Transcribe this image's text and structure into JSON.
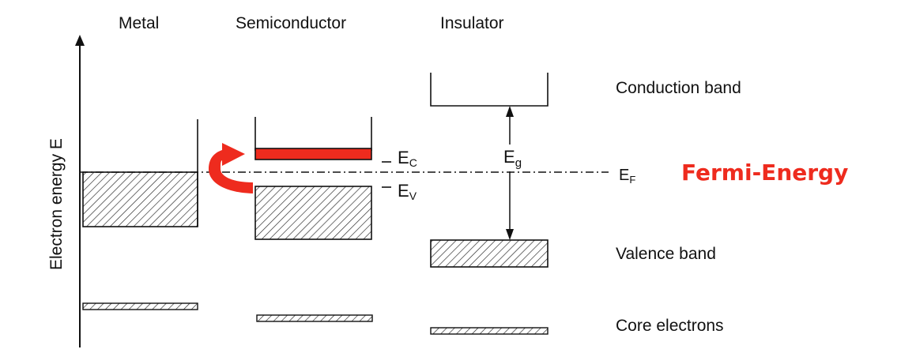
{
  "headers": {
    "metal": "Metal",
    "semiconductor": "Semiconductor",
    "insulator": "Insulator"
  },
  "axis": {
    "ylabel": "Electron energy E"
  },
  "labels": {
    "ec_base": "E",
    "ec_sub": "C",
    "ev_base": "E",
    "ev_sub": "V",
    "eg_base": "E",
    "eg_sub": "g",
    "ef_base": "E",
    "ef_sub": "F",
    "fermi": "Fermi-Energy"
  },
  "band_labels": {
    "conduction": "Conduction band",
    "valence": "Valence band",
    "core": "Core electrons"
  },
  "colors": {
    "accent": "#ee2b1e",
    "ink": "#111111"
  }
}
